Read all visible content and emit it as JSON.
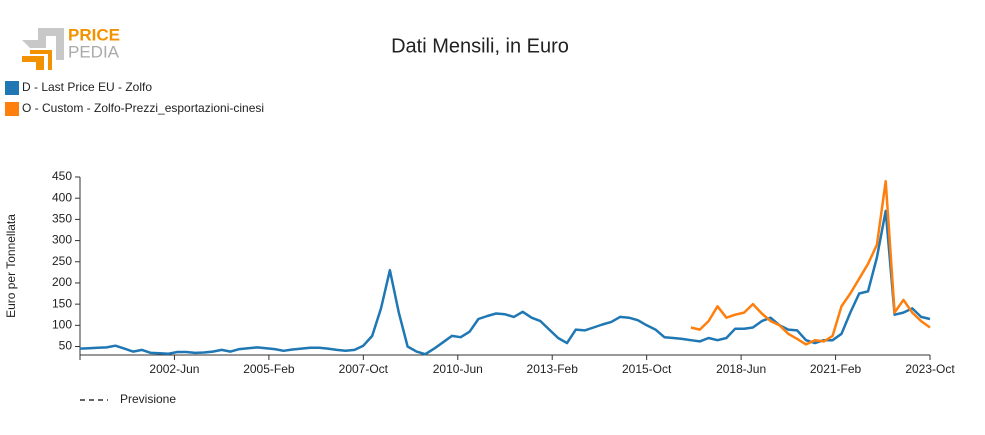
{
  "logo": {
    "top": "PRICE",
    "bottom": "PEDIA"
  },
  "chart_data": {
    "type": "line",
    "title": "Dati Mensili, in Euro",
    "y_label": "Euro per Tonnellata",
    "forecast_label": "Previsione",
    "x": [
      "1999-Oct",
      "2000-Jan",
      "2000-Apr",
      "2000-Jul",
      "2000-Oct",
      "2001-Jan",
      "2001-Apr",
      "2001-Jul",
      "2001-Oct",
      "2002-Jan",
      "2002-Apr",
      "2002-Jul",
      "2002-Oct",
      "2003-Jan",
      "2003-Apr",
      "2003-Jul",
      "2003-Oct",
      "2004-Jan",
      "2004-Apr",
      "2004-Jul",
      "2004-Oct",
      "2005-Jan",
      "2005-Apr",
      "2005-Jul",
      "2005-Oct",
      "2006-Jan",
      "2006-Apr",
      "2006-Jul",
      "2006-Oct",
      "2007-Jan",
      "2007-Apr",
      "2007-Jul",
      "2007-Oct",
      "2008-Jan",
      "2008-Apr",
      "2008-Jul",
      "2008-Oct",
      "2009-Jan",
      "2009-Apr",
      "2009-Jul",
      "2009-Oct",
      "2010-Jan",
      "2010-Apr",
      "2010-Jul",
      "2010-Oct",
      "2011-Jan",
      "2011-Apr",
      "2011-Jul",
      "2011-Oct",
      "2012-Jan",
      "2012-Apr",
      "2012-Jul",
      "2012-Oct",
      "2013-Jan",
      "2013-Apr",
      "2013-Jul",
      "2013-Oct",
      "2014-Jan",
      "2014-Apr",
      "2014-Jul",
      "2014-Oct",
      "2015-Jan",
      "2015-Apr",
      "2015-Jul",
      "2015-Oct",
      "2016-Jan",
      "2016-Apr",
      "2016-Jul",
      "2016-Oct",
      "2017-Jan",
      "2017-Apr",
      "2017-Jul",
      "2017-Oct",
      "2018-Jan",
      "2018-Apr",
      "2018-Jul",
      "2018-Oct",
      "2019-Jan",
      "2019-Apr",
      "2019-Jul",
      "2019-Oct",
      "2020-Jan",
      "2020-Apr",
      "2020-Jul",
      "2020-Oct",
      "2021-Jan",
      "2021-Apr",
      "2021-Jul",
      "2021-Oct",
      "2022-Jan",
      "2022-Apr",
      "2022-Jul",
      "2022-Oct",
      "2023-Jan",
      "2023-Apr",
      "2023-Jul",
      "2023-Oct"
    ],
    "xlim": [
      "1999-Oct",
      "2023-Oct"
    ],
    "xticks": [
      "2002-Jun",
      "2005-Feb",
      "2007-Oct",
      "2010-Jun",
      "2013-Feb",
      "2015-Oct",
      "2018-Jun",
      "2021-Feb",
      "2023-Oct"
    ],
    "ylim": [
      30,
      450
    ],
    "yticks": [
      50,
      100,
      150,
      200,
      250,
      300,
      350,
      400,
      450
    ],
    "series": [
      {
        "name": "D - Last Price EU - Zolfo",
        "color": "#1f77b4",
        "values": [
          45,
          46,
          47,
          48,
          52,
          45,
          38,
          42,
          35,
          34,
          33,
          37,
          37,
          35,
          36,
          38,
          42,
          38,
          44,
          46,
          48,
          46,
          44,
          40,
          43,
          45,
          47,
          47,
          45,
          42,
          40,
          42,
          52,
          75,
          140,
          230,
          130,
          50,
          38,
          32,
          45,
          60,
          75,
          72,
          85,
          115,
          122,
          128,
          126,
          120,
          132,
          118,
          110,
          90,
          70,
          58,
          90,
          88,
          95,
          102,
          108,
          120,
          118,
          112,
          100,
          90,
          72,
          70,
          68,
          65,
          62,
          70,
          65,
          70,
          92,
          92,
          95,
          110,
          118,
          100,
          90,
          88,
          65,
          58,
          65,
          65,
          80,
          130,
          175,
          180,
          260,
          370,
          125,
          130,
          140,
          120,
          115
        ]
      },
      {
        "name": "O - Custom - Zolfo-Prezzi_esportazioni-cinesi",
        "color": "#ff7f0e",
        "values": [
          null,
          null,
          null,
          null,
          null,
          null,
          null,
          null,
          null,
          null,
          null,
          null,
          null,
          null,
          null,
          null,
          null,
          null,
          null,
          null,
          null,
          null,
          null,
          null,
          null,
          null,
          null,
          null,
          null,
          null,
          null,
          null,
          null,
          null,
          null,
          null,
          null,
          null,
          null,
          null,
          null,
          null,
          null,
          null,
          null,
          null,
          null,
          null,
          null,
          null,
          null,
          null,
          null,
          null,
          null,
          null,
          null,
          null,
          null,
          null,
          null,
          null,
          null,
          null,
          null,
          null,
          null,
          null,
          null,
          95,
          90,
          110,
          145,
          118,
          125,
          130,
          150,
          128,
          110,
          100,
          80,
          68,
          55,
          65,
          62,
          75,
          145,
          175,
          210,
          245,
          290,
          440,
          130,
          160,
          130,
          110,
          95
        ]
      }
    ]
  }
}
